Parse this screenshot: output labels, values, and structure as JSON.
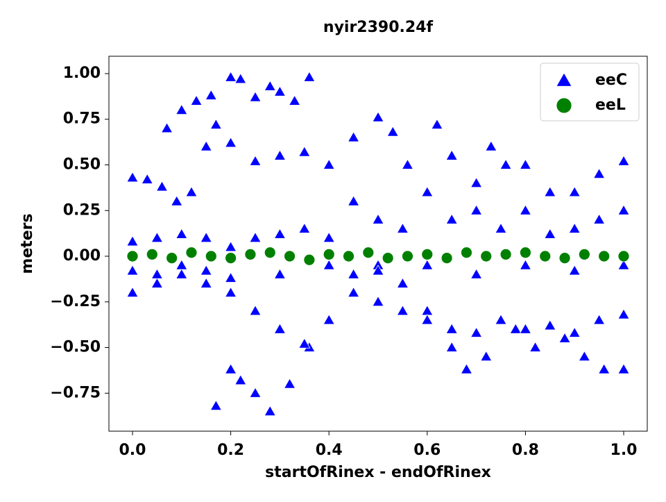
{
  "chart_data": {
    "type": "scatter",
    "title": "nyir2390.24f",
    "x_label": "startOfRinex - endOfRinex",
    "y_label": "meters",
    "xlim": [
      -0.048,
      1.048
    ],
    "ylim": [
      -0.958,
      1.095
    ],
    "xticks": [
      {
        "value": 0,
        "label": "0.0"
      },
      {
        "value": 0.2,
        "label": "0.2"
      },
      {
        "value": 0.4,
        "label": "0.4"
      },
      {
        "value": 0.6,
        "label": "0.6"
      },
      {
        "value": 0.8,
        "label": "0.8"
      },
      {
        "value": 1,
        "label": "1.0"
      }
    ],
    "yticks": [
      {
        "value": -0.75,
        "label": "−0.75"
      },
      {
        "value": -0.5,
        "label": "−0.50"
      },
      {
        "value": -0.25,
        "label": "−0.25"
      },
      {
        "value": 0,
        "label": "0.00"
      },
      {
        "value": 0.25,
        "label": "0.25"
      },
      {
        "value": 0.5,
        "label": "0.50"
      },
      {
        "value": 0.75,
        "label": "0.75"
      },
      {
        "value": 1,
        "label": "1.00"
      }
    ],
    "legend": "upper right",
    "series": [
      {
        "name": "eeC",
        "color": "#0000ff",
        "marker": "triangle",
        "x": [
          0.07,
          0.1,
          0.13,
          0.16,
          0.2,
          0.22,
          0.25,
          0.28,
          0.3,
          0.33,
          0.36,
          0.0,
          0.03,
          0.06,
          0.09,
          0.12,
          0.15,
          0.17,
          0.2,
          0.25,
          0.3,
          0.35,
          0.4,
          0.45,
          0.5,
          0.53,
          0.56,
          0.62,
          0.65,
          0.7,
          0.73,
          0.76,
          0.8,
          0.85,
          0.9,
          0.95,
          1.0,
          0.17,
          0.2,
          0.22,
          0.25,
          0.28,
          0.32,
          0.36,
          0.4,
          0.45,
          0.5,
          0.55,
          0.6,
          0.65,
          0.68,
          0.72,
          0.78,
          0.82,
          0.88,
          0.92,
          0.96,
          1.0,
          0.0,
          0.05,
          0.1,
          0.15,
          0.2,
          0.25,
          0.3,
          0.35,
          0.4,
          0.45,
          0.5,
          0.55,
          0.6,
          0.65,
          0.7,
          0.75,
          0.8,
          0.85,
          0.9,
          0.95,
          1.0,
          0.0,
          0.05,
          0.1,
          0.15,
          0.2,
          0.25,
          0.3,
          0.35,
          0.4,
          0.45,
          0.5,
          0.55,
          0.6,
          0.65,
          0.7,
          0.75,
          0.8,
          0.85,
          0.9,
          0.95,
          1.0,
          0.0,
          0.05,
          0.1,
          0.15,
          0.2,
          0.3,
          0.4,
          0.5,
          0.6,
          0.7,
          0.8,
          0.9,
          1.0
        ],
        "values": [
          0.7,
          0.8,
          0.85,
          0.88,
          0.98,
          0.97,
          0.87,
          0.93,
          0.9,
          0.85,
          0.98,
          0.43,
          0.42,
          0.38,
          0.3,
          0.35,
          0.6,
          0.72,
          0.62,
          0.52,
          0.55,
          0.57,
          0.5,
          0.65,
          0.76,
          0.68,
          0.5,
          0.72,
          0.55,
          0.4,
          0.6,
          0.5,
          0.5,
          0.35,
          0.35,
          0.45,
          0.52,
          -0.82,
          -0.62,
          -0.68,
          -0.75,
          -0.85,
          -0.7,
          -0.5,
          -0.35,
          -0.1,
          -0.05,
          -0.15,
          -0.3,
          -0.5,
          -0.62,
          -0.55,
          -0.4,
          -0.5,
          -0.45,
          -0.55,
          -0.62,
          -0.62,
          -0.2,
          -0.15,
          -0.1,
          -0.15,
          -0.2,
          -0.3,
          -0.4,
          -0.48,
          -0.35,
          -0.2,
          -0.25,
          -0.3,
          -0.35,
          -0.4,
          -0.42,
          -0.35,
          -0.4,
          -0.38,
          -0.42,
          -0.35,
          -0.32,
          0.08,
          0.1,
          0.12,
          0.1,
          0.05,
          0.1,
          0.12,
          0.15,
          0.1,
          0.3,
          0.2,
          0.15,
          0.35,
          0.2,
          0.25,
          0.15,
          0.25,
          0.12,
          0.15,
          0.2,
          0.25,
          -0.08,
          -0.1,
          -0.05,
          -0.08,
          -0.12,
          -0.1,
          -0.05,
          -0.08,
          -0.05,
          -0.1,
          -0.05,
          -0.08,
          -0.05
        ]
      },
      {
        "name": "eeL",
        "color": "#008000",
        "marker": "circle",
        "x": [
          0.0,
          0.04,
          0.08,
          0.12,
          0.16,
          0.2,
          0.24,
          0.28,
          0.32,
          0.36,
          0.4,
          0.44,
          0.48,
          0.52,
          0.56,
          0.6,
          0.64,
          0.68,
          0.72,
          0.76,
          0.8,
          0.84,
          0.88,
          0.92,
          0.96,
          1.0
        ],
        "values": [
          0.0,
          0.01,
          -0.01,
          0.02,
          0.0,
          -0.01,
          0.01,
          0.02,
          0.0,
          -0.02,
          0.01,
          0.0,
          0.02,
          -0.01,
          0.0,
          0.01,
          -0.01,
          0.02,
          0.0,
          0.01,
          0.02,
          0.0,
          -0.01,
          0.01,
          0.0,
          0.0
        ]
      }
    ]
  }
}
